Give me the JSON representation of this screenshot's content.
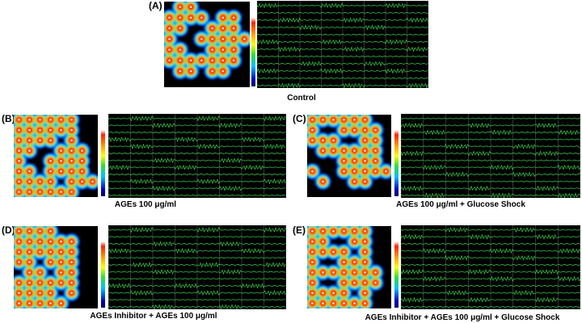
{
  "panels": [
    {
      "letter": "(A)",
      "caption": "Control"
    },
    {
      "letter": "(B)",
      "caption": "AGEs 100 μg/ml"
    },
    {
      "letter": "(C)",
      "caption": "AGEs 100 μg/ml + Glucose Shock"
    },
    {
      "letter": "(D)",
      "caption": "AGEs Inhibitor + AGEs 100 μg/ml"
    },
    {
      "letter": "(E)",
      "caption": "AGEs Inhibitor + AGEs 100 μg/ml + Glucose Shock"
    }
  ],
  "colors": {
    "background": "#ffffff",
    "map_background": "#000000",
    "trace": "#34d24a",
    "grid": "#5a5a5a",
    "active": "#ff2a00",
    "border": "#2ad0ff"
  }
}
